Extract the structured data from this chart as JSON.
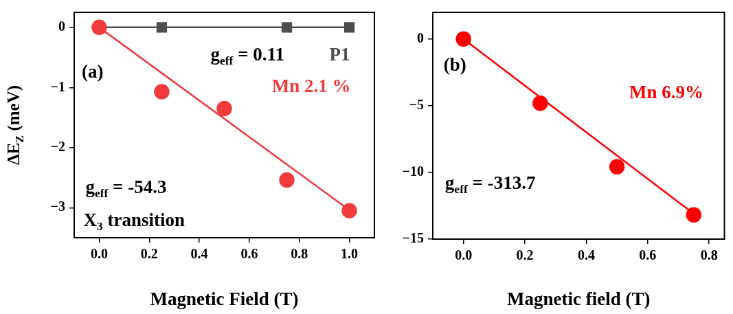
{
  "chart_data": [
    {
      "type": "scatter",
      "xlabel": "Magnetic Field (T)",
      "ylabel": "ΔE$_{Z}$ (meV)",
      "xlim": [
        -0.1,
        1.1
      ],
      "xticks": [
        {
          "value": 0,
          "label": "0.0"
        },
        {
          "value": 0.2,
          "label": "0.2"
        },
        {
          "value": 0.4,
          "label": "0.4"
        },
        {
          "value": 0.6,
          "label": "0.6"
        },
        {
          "value": 0.8,
          "label": "0.8"
        },
        {
          "value": 1,
          "label": "1.0"
        }
      ],
      "ylim": [
        -3.5,
        0.25
      ],
      "yticks": [
        0,
        {
          "value": -1,
          "label": "−1"
        },
        {
          "value": -2,
          "label": "−2"
        },
        {
          "value": -3,
          "label": "−3"
        }
      ],
      "grid": false,
      "legend": false,
      "series": [
        {
          "name": "P1",
          "type": "line",
          "color": "#4d4d4d",
          "marker": "square",
          "x": [
            0,
            0.25,
            0.75,
            1
          ],
          "values": [
            0,
            0,
            0,
            0
          ]
        },
        {
          "type": "line",
          "color": "#f03c3c",
          "marker": "none",
          "x": [
            0,
            1
          ],
          "values": [
            0,
            -3.04
          ]
        },
        {
          "name": "Mn 2.1 %",
          "type": "scatter",
          "color": "#f03c3c",
          "marker": "circle",
          "x": [
            0,
            0.25,
            0.5,
            0.75,
            1
          ],
          "values": [
            0,
            -1.07,
            -1.35,
            -2.54,
            -3.05
          ]
        }
      ],
      "annotations": [
        "(a)",
        "g$_{eff}$ = 0.11",
        "g$_{eff}$ = -54.3",
        "X$_{3}$ transition"
      ]
    },
    {
      "type": "scatter",
      "xlabel": "Magnetic field (T)",
      "xlim": [
        -0.1,
        0.85
      ],
      "xticks": [
        {
          "value": 0,
          "label": "0.0"
        },
        {
          "value": 0.2,
          "label": "0.2"
        },
        {
          "value": 0.4,
          "label": "0.4"
        },
        {
          "value": 0.6,
          "label": "0.6"
        },
        {
          "value": 0.8,
          "label": "0.8"
        }
      ],
      "ylim": [
        -15,
        2
      ],
      "yticks": [
        0,
        {
          "value": -5,
          "label": "−5"
        },
        {
          "value": -10,
          "label": "−10"
        },
        {
          "value": -15,
          "label": "−15"
        }
      ],
      "grid": false,
      "legend": false,
      "series": [
        {
          "type": "line",
          "color": "#ff0000",
          "marker": "none",
          "x": [
            0,
            0.75
          ],
          "values": [
            0,
            -13.1
          ]
        },
        {
          "name": "Mn 6.9%",
          "type": "scatter",
          "color": "#ff0000",
          "marker": "circle",
          "x": [
            0,
            0.25,
            0.5,
            0.75
          ],
          "values": [
            0,
            -4.81,
            -9.58,
            -13.18
          ]
        }
      ],
      "annotations": [
        "(b)",
        "g$_{eff}$ = -313.7"
      ]
    }
  ]
}
